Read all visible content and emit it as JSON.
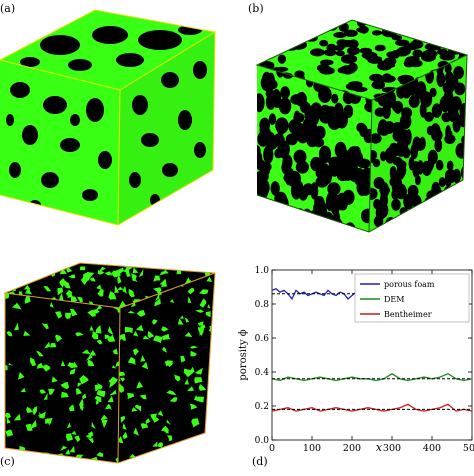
{
  "panels": {
    "a": {
      "label": "(a)"
    },
    "b": {
      "label": "(b)"
    },
    "c": {
      "label": "(c)"
    },
    "d": {
      "label": "(d)"
    }
  },
  "colors": {
    "solid_green": "#39ff14",
    "pore_black": "#000000",
    "edge_yellow": "#e8e000",
    "edge_orange": "#e0a020"
  },
  "chart_data": {
    "type": "line",
    "xlabel": "x",
    "ylabel": "porosity ϕ",
    "xlim": [
      0,
      500
    ],
    "ylim": [
      0.0,
      1.0
    ],
    "xticks": [
      0,
      100,
      200,
      300,
      400,
      500
    ],
    "xtick_labels": [
      "0",
      "100",
      "200",
      "300",
      "400",
      "500"
    ],
    "yticks": [
      0.0,
      0.2,
      0.4,
      0.6,
      0.8,
      1.0
    ],
    "ytick_labels": [
      "0.0",
      "0.2",
      "0.4",
      "0.6",
      "0.8",
      "1.0"
    ],
    "grid": false,
    "legend_placement": "top-right",
    "series": [
      {
        "name": "porous foam",
        "color": "#1f1fbf",
        "mean": 0.86,
        "x": [
          0,
          10,
          20,
          30,
          40,
          50,
          60,
          70,
          80,
          90,
          100,
          110,
          120,
          130,
          140,
          150,
          160,
          170,
          180,
          190,
          200,
          210,
          220,
          230,
          240,
          250
        ],
        "y": [
          0.88,
          0.89,
          0.87,
          0.88,
          0.86,
          0.83,
          0.88,
          0.86,
          0.87,
          0.85,
          0.86,
          0.87,
          0.86,
          0.85,
          0.88,
          0.86,
          0.85,
          0.87,
          0.86,
          0.83,
          0.85,
          0.87,
          0.84,
          0.86,
          0.87,
          0.88
        ]
      },
      {
        "name": "DEM",
        "color": "#1a8a1a",
        "mean": 0.36,
        "x": [
          0,
          20,
          40,
          60,
          80,
          100,
          120,
          140,
          160,
          180,
          200,
          220,
          240,
          260,
          280,
          300,
          320,
          340,
          360,
          380,
          400,
          420,
          440,
          460,
          480,
          500
        ],
        "y": [
          0.36,
          0.35,
          0.37,
          0.36,
          0.35,
          0.36,
          0.37,
          0.36,
          0.35,
          0.36,
          0.37,
          0.36,
          0.36,
          0.35,
          0.36,
          0.39,
          0.36,
          0.35,
          0.36,
          0.37,
          0.36,
          0.37,
          0.39,
          0.36,
          0.35,
          0.36
        ]
      },
      {
        "name": "Bentheimer",
        "color": "#cc1a1a",
        "mean": 0.18,
        "x": [
          0,
          20,
          40,
          60,
          80,
          100,
          120,
          140,
          160,
          180,
          200,
          220,
          240,
          260,
          280,
          300,
          320,
          340,
          360,
          380,
          400,
          420,
          440,
          460,
          480,
          500
        ],
        "y": [
          0.17,
          0.18,
          0.19,
          0.17,
          0.18,
          0.19,
          0.17,
          0.18,
          0.19,
          0.18,
          0.17,
          0.18,
          0.19,
          0.18,
          0.17,
          0.18,
          0.19,
          0.21,
          0.18,
          0.17,
          0.18,
          0.19,
          0.21,
          0.17,
          0.18,
          0.17
        ]
      }
    ]
  }
}
